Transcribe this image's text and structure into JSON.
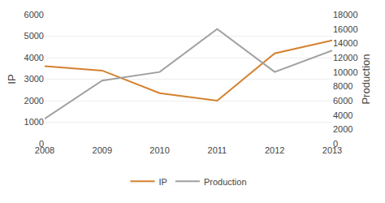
{
  "chart_data": {
    "type": "line",
    "x": [
      2008,
      2009,
      2010,
      2011,
      2012,
      2013
    ],
    "xlim": [
      2008,
      2013
    ],
    "xticks": [
      2008,
      2009,
      2010,
      2011,
      2012,
      2013
    ],
    "ylabel": "IP",
    "y2label": "Production",
    "ylim": [
      0,
      6000
    ],
    "yticks": [
      0,
      1000,
      2000,
      3000,
      4000,
      5000,
      6000
    ],
    "y2lim": [
      0,
      18000
    ],
    "y2ticks": [
      0,
      2000,
      4000,
      6000,
      8000,
      10000,
      12000,
      14000,
      16000,
      18000
    ],
    "grid": true,
    "legend": "bottom",
    "series": [
      {
        "name": "IP",
        "color": "#d4812e",
        "values": [
          3600,
          3400,
          2350,
          2000,
          4200,
          4800
        ]
      },
      {
        "name": "Production",
        "color": "#a0a0a0",
        "axis": "y2",
        "values": [
          3500,
          8800,
          10000,
          16000,
          10000,
          13000
        ]
      }
    ]
  }
}
